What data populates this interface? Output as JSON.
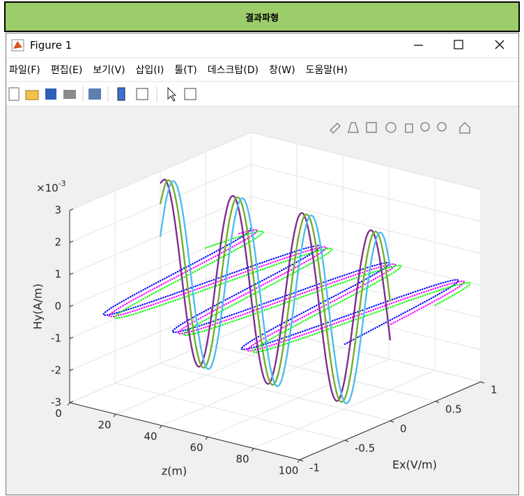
{
  "header": {
    "title": "결과파형"
  },
  "window": {
    "title": "Figure 1",
    "menu": [
      "파일(F)",
      "편집(E)",
      "보기(V)",
      "삽입(I)",
      "툴(T)",
      "데스크탑(D)",
      "창(W)",
      "도움말(H)"
    ]
  },
  "chart_data": {
    "type": "line3d",
    "xlabel": "z(m)",
    "ylabel": "Ex(V/m)",
    "zlabel": "Hy(A/m)",
    "z_multiplier": "×10",
    "z_exponent": "-3",
    "xlim": [
      0,
      100
    ],
    "xticks": [
      0,
      20,
      40,
      60,
      80,
      100
    ],
    "ylim": [
      -1,
      1
    ],
    "yticks": [
      -1,
      -0.5,
      0,
      0.5,
      1
    ],
    "zlim": [
      -3,
      3
    ],
    "zticks": [
      -3,
      -2,
      -1,
      0,
      1,
      2,
      3
    ],
    "grid": true,
    "x": [
      0,
      2.5,
      5,
      7.5,
      10,
      12.5,
      15,
      17.5,
      20,
      22.5,
      25,
      27.5,
      30,
      32.5,
      35,
      37.5,
      40,
      42.5,
      45,
      47.5,
      50,
      52.5,
      55,
      57.5,
      60,
      62.5,
      65,
      67.5,
      70,
      72.5,
      75,
      77.5,
      80,
      82.5,
      85,
      87.5,
      90,
      92.5,
      95,
      97.5,
      100
    ],
    "series": [
      {
        "color": "#0000ff",
        "style": "dotted",
        "y": [
          1,
          0.87,
          0.5,
          0,
          -0.5,
          -0.87,
          -1,
          -0.87,
          -0.5,
          0,
          0.5,
          0.87,
          1,
          0.87,
          0.5,
          0,
          -0.5,
          -0.87,
          -1,
          -0.87,
          -0.5,
          0,
          0.5,
          0.87,
          1,
          0.87,
          0.5,
          0,
          -0.5,
          -0.87,
          -1,
          -0.87,
          -0.5,
          0,
          0.5,
          0.87,
          1,
          0.87,
          0.5,
          0,
          -0.5
        ],
        "z": [
          0,
          0,
          0,
          0,
          0,
          0,
          0,
          0,
          0,
          0,
          0,
          0,
          0,
          0,
          0,
          0,
          0,
          0,
          0,
          0,
          0,
          0,
          0,
          0,
          0,
          0,
          0,
          0,
          0,
          0,
          0,
          0,
          0,
          0,
          0,
          0,
          0,
          0,
          0,
          0,
          0
        ]
      },
      {
        "color": "#ff00ff",
        "style": "dotted",
        "y": [
          0.87,
          1,
          0.87,
          0.5,
          0,
          -0.5,
          -0.87,
          -1,
          -0.87,
          -0.5,
          0,
          0.5,
          0.87,
          1,
          0.87,
          0.5,
          0,
          -0.5,
          -0.87,
          -1,
          -0.87,
          -0.5,
          0,
          0.5,
          0.87,
          1,
          0.87,
          0.5,
          0,
          -0.5,
          -0.87,
          -1,
          -0.87,
          -0.5,
          0,
          0.5,
          0.87,
          1,
          0.87,
          0.5,
          0
        ],
        "z": [
          0,
          0,
          0,
          0,
          0,
          0,
          0,
          0,
          0,
          0,
          0,
          0,
          0,
          0,
          0,
          0,
          0,
          0,
          0,
          0,
          0,
          0,
          0,
          0,
          0,
          0,
          0,
          0,
          0,
          0,
          0,
          0,
          0,
          0,
          0,
          0,
          0,
          0,
          0,
          0,
          0
        ]
      },
      {
        "color": "#00ff00",
        "style": "dotted",
        "y": [
          0.5,
          0.87,
          1,
          0.87,
          0.5,
          0,
          -0.5,
          -0.87,
          -1,
          -0.87,
          -0.5,
          0,
          0.5,
          0.87,
          1,
          0.87,
          0.5,
          0,
          -0.5,
          -0.87,
          -1,
          -0.87,
          -0.5,
          0,
          0.5,
          0.87,
          1,
          0.87,
          0.5,
          0,
          -0.5,
          -0.87,
          -1,
          -0.87,
          -0.5,
          0,
          0.5,
          0.87,
          1,
          0.87,
          0.5
        ],
        "z": [
          0,
          0,
          0,
          0,
          0,
          0,
          0,
          0,
          0,
          0,
          0,
          0,
          0,
          0,
          0,
          0,
          0,
          0,
          0,
          0,
          0,
          0,
          0,
          0,
          0,
          0,
          0,
          0,
          0,
          0,
          0,
          0,
          0,
          0,
          0,
          0,
          0,
          0,
          0,
          0,
          0
        ]
      },
      {
        "color": "#7e2f8e",
        "style": "solid",
        "y": [
          0,
          0,
          0,
          0,
          0,
          0,
          0,
          0,
          0,
          0,
          0,
          0,
          0,
          0,
          0,
          0,
          0,
          0,
          0,
          0,
          0,
          0,
          0,
          0,
          0,
          0,
          0,
          0,
          0,
          0,
          0,
          0,
          0,
          0,
          0,
          0,
          0,
          0,
          0,
          0,
          0
        ],
        "z": [
          2.63,
          2.76,
          2.14,
          0.96,
          -0.49,
          -1.8,
          -2.63,
          -2.76,
          -2.14,
          -0.96,
          0.49,
          1.8,
          2.63,
          2.76,
          2.14,
          0.96,
          -0.49,
          -1.8,
          -2.63,
          -2.76,
          -2.14,
          -0.96,
          0.49,
          1.8,
          2.63,
          2.76,
          2.14,
          0.96,
          -0.49,
          -1.8,
          -2.63,
          -2.76,
          -2.14,
          -0.96,
          0.49,
          1.8,
          2.63,
          2.76,
          2.14,
          0.96,
          -0.49
        ]
      },
      {
        "color": "#77ac30",
        "style": "solid",
        "y": [
          0,
          0,
          0,
          0,
          0,
          0,
          0,
          0,
          0,
          0,
          0,
          0,
          0,
          0,
          0,
          0,
          0,
          0,
          0,
          0,
          0,
          0,
          0,
          0,
          0,
          0,
          0,
          0,
          0,
          0,
          0,
          0,
          0,
          0,
          0,
          0,
          0,
          0,
          0,
          0,
          0
        ],
        "z": [
          1.98,
          2.7,
          2.7,
          1.98,
          0.72,
          -0.72,
          -1.98,
          -2.7,
          -2.7,
          -1.98,
          -0.72,
          0.72,
          1.98,
          2.7,
          2.7,
          1.98,
          0.72,
          -0.72,
          -1.98,
          -2.7,
          -2.7,
          -1.98,
          -0.72,
          0.72,
          1.98,
          2.7,
          2.7,
          1.98,
          0.72,
          -0.72,
          -1.98,
          -2.7,
          -2.7,
          -1.98,
          -0.72,
          0.72,
          1.98,
          2.7,
          2.7,
          1.98,
          0.72
        ]
      },
      {
        "color": "#4dbeee",
        "style": "solid",
        "y": [
          0,
          0,
          0,
          0,
          0,
          0,
          0,
          0,
          0,
          0,
          0,
          0,
          0,
          0,
          0,
          0,
          0,
          0,
          0,
          0,
          0,
          0,
          0,
          0,
          0,
          0,
          0,
          0,
          0,
          0,
          0,
          0,
          0,
          0,
          0,
          0,
          0,
          0,
          0,
          0,
          0
        ],
        "z": [
          0.96,
          2.14,
          2.76,
          2.63,
          1.8,
          0.49,
          -0.96,
          -2.14,
          -2.76,
          -2.63,
          -1.8,
          -0.49,
          0.96,
          2.14,
          2.76,
          2.63,
          1.8,
          0.49,
          -0.96,
          -2.14,
          -2.76,
          -2.63,
          -1.8,
          -0.49,
          0.96,
          2.14,
          2.76,
          2.63,
          1.8,
          0.49,
          -0.96,
          -2.14,
          -2.76,
          -2.63,
          -1.8,
          -0.49,
          0.96,
          2.14,
          2.76,
          2.63,
          1.8
        ]
      }
    ]
  }
}
